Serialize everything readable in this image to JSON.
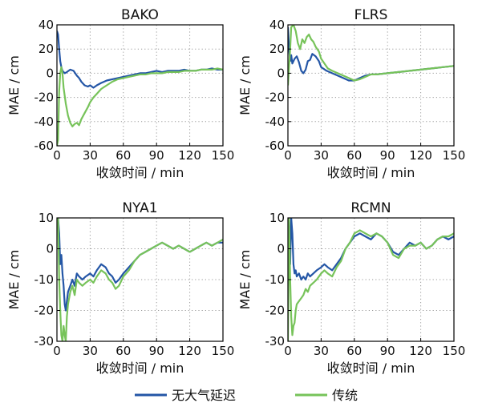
{
  "colors": {
    "series_a": "#2456a6",
    "series_b": "#77c35a",
    "grid": "#999999",
    "axis": "#000000"
  },
  "legend": {
    "placement": "bottom-center",
    "items": [
      "无大气延迟",
      "传统"
    ]
  },
  "chart_data": [
    {
      "type": "line",
      "title": "BAKO",
      "xlabel": "收敛时间 / min",
      "ylabel": "MAE / cm",
      "xlim": [
        0,
        150
      ],
      "ylim": [
        -60,
        40
      ],
      "xticks": [
        0,
        30,
        60,
        90,
        120,
        150
      ],
      "yticks": [
        40,
        20,
        0,
        -20,
        -40,
        -60
      ],
      "grid": true,
      "series": [
        {
          "name": "无大气延迟",
          "color_key": "series_a",
          "x": [
            0,
            1,
            2,
            3,
            4,
            5,
            7,
            9,
            12,
            15,
            18,
            20,
            22,
            25,
            28,
            30,
            33,
            36,
            40,
            45,
            50,
            55,
            60,
            65,
            70,
            75,
            80,
            85,
            90,
            95,
            100,
            105,
            110,
            115,
            120,
            125,
            130,
            135,
            140,
            145,
            150
          ],
          "y": [
            35,
            32,
            20,
            10,
            5,
            2,
            0,
            1,
            3,
            2,
            -2,
            -4,
            -7,
            -10,
            -11,
            -10,
            -12,
            -10,
            -8,
            -6,
            -5,
            -4,
            -3,
            -2,
            -1,
            0,
            0,
            1,
            2,
            1,
            2,
            2,
            2,
            3,
            2,
            2,
            3,
            3,
            4,
            3,
            3
          ]
        },
        {
          "name": "传统",
          "color_key": "series_b",
          "x": [
            0,
            1,
            2,
            3,
            4,
            5,
            6,
            8,
            10,
            12,
            14,
            16,
            18,
            20,
            22,
            25,
            28,
            30,
            33,
            36,
            40,
            45,
            50,
            55,
            60,
            65,
            70,
            75,
            80,
            85,
            90,
            95,
            100,
            105,
            110,
            115,
            120,
            125,
            130,
            135,
            140,
            145,
            150
          ],
          "y": [
            -60,
            -55,
            -15,
            0,
            5,
            0,
            -12,
            -25,
            -35,
            -41,
            -44,
            -42,
            -41,
            -43,
            -38,
            -33,
            -28,
            -24,
            -20,
            -17,
            -13,
            -10,
            -7,
            -5,
            -4,
            -3,
            -2,
            -1,
            -1,
            0,
            0,
            0,
            1,
            1,
            1,
            2,
            2,
            2,
            3,
            3,
            3,
            4,
            3
          ]
        }
      ]
    },
    {
      "type": "line",
      "title": "FLRS",
      "xlabel": "收敛时间 / min",
      "ylabel": "MAE / cm",
      "xlim": [
        0,
        150
      ],
      "ylim": [
        -60,
        40
      ],
      "xticks": [
        0,
        30,
        60,
        90,
        120,
        150
      ],
      "yticks": [
        40,
        20,
        0,
        -20,
        -40,
        -60
      ],
      "grid": true,
      "series": [
        {
          "name": "无大气延迟",
          "color_key": "series_a",
          "x": [
            0,
            1,
            2,
            3,
            4,
            6,
            8,
            10,
            12,
            14,
            16,
            18,
            20,
            22,
            25,
            28,
            30,
            35,
            40,
            45,
            50,
            55,
            60,
            65,
            70,
            75,
            80,
            90,
            100,
            110,
            120,
            130,
            140,
            150
          ],
          "y": [
            38,
            20,
            10,
            15,
            8,
            12,
            14,
            9,
            2,
            0,
            3,
            10,
            11,
            16,
            14,
            10,
            5,
            2,
            0,
            -2,
            -4,
            -6,
            -6,
            -4,
            -2,
            -1,
            -1,
            0,
            1,
            2,
            3,
            4,
            5,
            6
          ]
        },
        {
          "name": "传统",
          "color_key": "series_b",
          "x": [
            0,
            1,
            2,
            3,
            5,
            7,
            9,
            11,
            13,
            15,
            17,
            19,
            21,
            23,
            25,
            28,
            30,
            33,
            36,
            40,
            45,
            50,
            55,
            60,
            65,
            70,
            75,
            80,
            90,
            100,
            110,
            120,
            130,
            140,
            150
          ],
          "y": [
            -10,
            5,
            20,
            38,
            40,
            35,
            25,
            20,
            28,
            25,
            30,
            32,
            28,
            26,
            22,
            18,
            12,
            8,
            4,
            2,
            0,
            -2,
            -4,
            -6,
            -5,
            -3,
            -1,
            -1,
            0,
            1,
            2,
            3,
            4,
            5,
            6
          ]
        }
      ]
    },
    {
      "type": "line",
      "title": "NYA1",
      "xlabel": "收敛时间 / min",
      "ylabel": "MAE / cm",
      "xlim": [
        0,
        150
      ],
      "ylim": [
        -30,
        10
      ],
      "xticks": [
        0,
        30,
        60,
        90,
        120,
        150
      ],
      "yticks": [
        10,
        0,
        -10,
        -20,
        -30
      ],
      "grid": true,
      "series": [
        {
          "name": "无大气延迟",
          "color_key": "series_a",
          "x": [
            0,
            1,
            2,
            3,
            4,
            5,
            6,
            7,
            8,
            9,
            10,
            12,
            14,
            16,
            18,
            20,
            23,
            26,
            30,
            33,
            36,
            40,
            44,
            47,
            50,
            53,
            56,
            60,
            65,
            70,
            75,
            80,
            85,
            90,
            95,
            100,
            105,
            110,
            115,
            120,
            125,
            130,
            135,
            140,
            145,
            150
          ],
          "y": [
            10,
            10,
            5,
            -5,
            -2,
            -8,
            -12,
            -18,
            -20,
            -17,
            -14,
            -12,
            -10,
            -12,
            -8,
            -9,
            -10,
            -9,
            -8,
            -9,
            -7,
            -5,
            -6,
            -8,
            -9,
            -11,
            -10,
            -8,
            -6,
            -4,
            -2,
            -1,
            0,
            1,
            2,
            1,
            0,
            1,
            0,
            -1,
            0,
            1,
            2,
            1,
            2,
            2
          ]
        },
        {
          "name": "传统",
          "color_key": "series_b",
          "x": [
            0,
            1,
            2,
            3,
            4,
            5,
            6,
            7,
            8,
            9,
            10,
            12,
            14,
            16,
            18,
            20,
            23,
            26,
            30,
            33,
            36,
            40,
            44,
            47,
            50,
            53,
            56,
            60,
            65,
            70,
            75,
            80,
            85,
            90,
            95,
            100,
            105,
            110,
            115,
            120,
            125,
            130,
            135,
            140,
            145,
            150
          ],
          "y": [
            10,
            10,
            -10,
            -20,
            -28,
            -30,
            -25,
            -28,
            -30,
            -22,
            -18,
            -14,
            -12,
            -15,
            -10,
            -11,
            -12,
            -11,
            -10,
            -11,
            -9,
            -7,
            -8,
            -10,
            -11,
            -13,
            -12,
            -9,
            -7,
            -4,
            -2,
            -1,
            0,
            1,
            2,
            1,
            0,
            1,
            0,
            -1,
            0,
            1,
            2,
            1,
            2,
            3
          ]
        }
      ]
    },
    {
      "type": "line",
      "title": "RCMN",
      "xlabel": "收敛时间 / min",
      "ylabel": "MAE / cm",
      "xlim": [
        0,
        150
      ],
      "ylim": [
        -30,
        10
      ],
      "xticks": [
        0,
        30,
        60,
        90,
        120,
        150
      ],
      "yticks": [
        10,
        0,
        -10,
        -20,
        -30
      ],
      "grid": true,
      "series": [
        {
          "name": "无大气延迟",
          "color_key": "series_a",
          "x": [
            0,
            1,
            2,
            3,
            4,
            5,
            6,
            7,
            8,
            10,
            12,
            14,
            16,
            18,
            20,
            23,
            26,
            30,
            33,
            36,
            40,
            44,
            48,
            52,
            56,
            60,
            65,
            70,
            75,
            80,
            85,
            90,
            95,
            100,
            105,
            110,
            115,
            120,
            125,
            130,
            135,
            140,
            145,
            150
          ],
          "y": [
            -20,
            10,
            -5,
            10,
            5,
            -5,
            -8,
            -7,
            -9,
            -8,
            -10,
            -9,
            -10,
            -8,
            -9,
            -8,
            -7,
            -6,
            -5,
            -6,
            -7,
            -5,
            -3,
            0,
            2,
            4,
            5,
            4,
            3,
            5,
            4,
            2,
            -1,
            -2,
            0,
            2,
            1,
            2,
            0,
            1,
            3,
            4,
            3,
            4
          ]
        },
        {
          "name": "传统",
          "color_key": "series_b",
          "x": [
            0,
            1,
            2,
            3,
            4,
            5,
            6,
            7,
            8,
            10,
            12,
            14,
            16,
            18,
            20,
            23,
            26,
            30,
            33,
            36,
            40,
            44,
            48,
            52,
            56,
            60,
            65,
            70,
            75,
            80,
            85,
            90,
            95,
            100,
            105,
            110,
            115,
            120,
            125,
            130,
            135,
            140,
            145,
            150
          ],
          "y": [
            -30,
            10,
            -10,
            -22,
            -28,
            -25,
            -24,
            -20,
            -18,
            -17,
            -16,
            -15,
            -13,
            -14,
            -12,
            -11,
            -10,
            -8,
            -7,
            -8,
            -9,
            -6,
            -4,
            0,
            2,
            5,
            6,
            5,
            4,
            5,
            4,
            2,
            -2,
            -3,
            0,
            1,
            1,
            2,
            0,
            1,
            3,
            4,
            4,
            5
          ]
        }
      ]
    }
  ]
}
